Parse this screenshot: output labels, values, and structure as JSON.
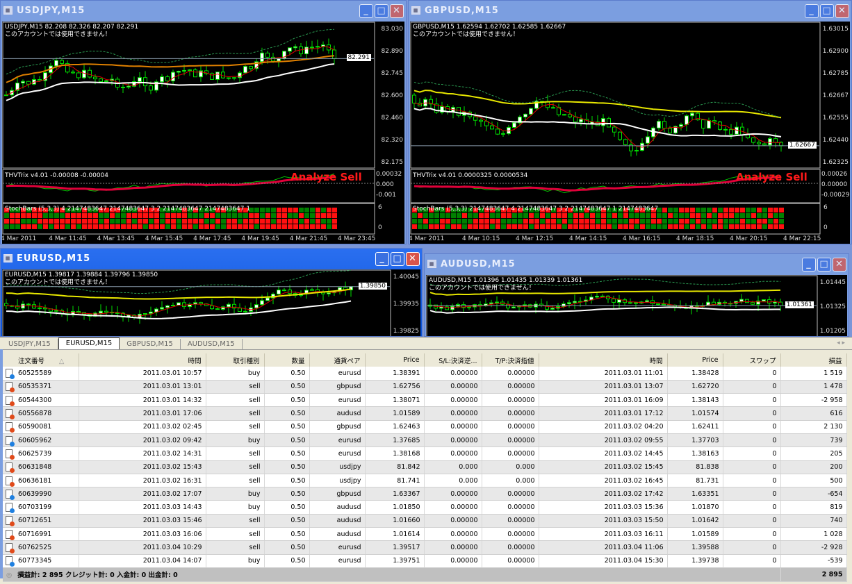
{
  "windows": [
    {
      "id": "usdjpy",
      "title": "USDJPY,M15",
      "ohlc": "USDJPY,M15  82.208 82.326 82.207 82.291",
      "notice": "このアカウントでは使用できません！",
      "price_ticks": [
        "83.030",
        "82.890",
        "82.745",
        "82.600",
        "82.460",
        "82.320",
        "82.175"
      ],
      "current_price": "82.291",
      "indicator1": "THVTrix v4.01 -0.00008 -0.00004",
      "indicator1_ticks": [
        "0.00032",
        "0.000",
        "-0.001"
      ],
      "signal": "Analyze Sell",
      "indicator2": "StochBars (5,3,3) 4 2147483647 2147483647 3 2 2147483647 2147483647 1",
      "indicator2_ticks": [
        "6",
        "0"
      ],
      "time_ticks": [
        "4 Mar 2011",
        "4 Mar 11:45",
        "4 Mar 13:45",
        "4 Mar 15:45",
        "4 Mar 17:45",
        "4 Mar 19:45",
        "4 Mar 21:45",
        "4 Mar 23:45"
      ],
      "active": false
    },
    {
      "id": "gbpusd",
      "title": "GBPUSD,M15",
      "ohlc": "GBPUSD,M15  1.62594 1.62702 1.62585 1.62667",
      "notice": "このアカウントでは使用できません！",
      "price_ticks": [
        "1.63015",
        "1.62900",
        "1.62785",
        "1.62667",
        "1.62555",
        "1.62440",
        "1.62325"
      ],
      "current_price": "1.62667",
      "indicator1": "THVTrix v4.01 0.0000325 0.0000534",
      "indicator1_ticks": [
        "0.00026",
        "0.00000",
        "-0.00029"
      ],
      "signal": "Analyze Sell",
      "indicator2": "StochBars (5,3,3) 2147483647 4 2147483647 3 2 2147483647 1 2147483647",
      "indicator2_ticks": [
        "6",
        "0"
      ],
      "time_ticks": [
        "4 Mar 2011",
        "4 Mar 10:15",
        "4 Mar 12:15",
        "4 Mar 14:15",
        "4 Mar 16:15",
        "4 Mar 18:15",
        "4 Mar 20:15",
        "4 Mar 22:15"
      ],
      "active": false
    },
    {
      "id": "eurusd",
      "title": "EURUSD,M15",
      "ohlc": "EURUSD,M15  1.39817 1.39884 1.39796 1.39850",
      "notice": "このアカウントでは使用できません！",
      "price_ticks": [
        "1.40045",
        "1.39935",
        "1.39825"
      ],
      "current_price": "1.39850",
      "active": true
    },
    {
      "id": "audusd",
      "title": "AUDUSD,M15",
      "ohlc": "AUDUSD,M15  1.01396 1.01435 1.01339 1.01361",
      "notice": "このアカウントでは使用できません！",
      "price_ticks": [
        "1.01445",
        "1.01325",
        "1.01205"
      ],
      "current_price": "1.01361",
      "active": false
    }
  ],
  "terminal": {
    "tabs": [
      "USDJPY,M15",
      "EURUSD,M15",
      "GBPUSD,M15",
      "AUDUSD,M15"
    ],
    "selected_tab": "EURUSD,M15",
    "columns": [
      "注文番号",
      "時間",
      "取引種別",
      "数量",
      "通貨ペア",
      "Price",
      "S/L:決済逆...",
      "T/P:決済指値",
      "時間",
      "Price",
      "スワップ",
      "損益"
    ],
    "sort_indicator": "△",
    "rows": [
      [
        "60525589",
        "2011.03.01 10:57",
        "buy",
        "0.50",
        "eurusd",
        "1.38391",
        "0.00000",
        "0.00000",
        "2011.03.01 11:01",
        "1.38428",
        "0",
        "1 519"
      ],
      [
        "60535371",
        "2011.03.01 13:01",
        "sell",
        "0.50",
        "gbpusd",
        "1.62756",
        "0.00000",
        "0.00000",
        "2011.03.01 13:07",
        "1.62720",
        "0",
        "1 478"
      ],
      [
        "60544300",
        "2011.03.01 14:32",
        "sell",
        "0.50",
        "eurusd",
        "1.38071",
        "0.00000",
        "0.00000",
        "2011.03.01 16:09",
        "1.38143",
        "0",
        "-2 958"
      ],
      [
        "60556878",
        "2011.03.01 17:06",
        "sell",
        "0.50",
        "audusd",
        "1.01589",
        "0.00000",
        "0.00000",
        "2011.03.01 17:12",
        "1.01574",
        "0",
        "616"
      ],
      [
        "60590081",
        "2011.03.02 02:45",
        "sell",
        "0.50",
        "gbpusd",
        "1.62463",
        "0.00000",
        "0.00000",
        "2011.03.02 04:20",
        "1.62411",
        "0",
        "2 130"
      ],
      [
        "60605962",
        "2011.03.02 09:42",
        "buy",
        "0.50",
        "eurusd",
        "1.37685",
        "0.00000",
        "0.00000",
        "2011.03.02 09:55",
        "1.37703",
        "0",
        "739"
      ],
      [
        "60625739",
        "2011.03.02 14:31",
        "sell",
        "0.50",
        "eurusd",
        "1.38168",
        "0.00000",
        "0.00000",
        "2011.03.02 14:45",
        "1.38163",
        "0",
        "205"
      ],
      [
        "60631848",
        "2011.03.02 15:43",
        "sell",
        "0.50",
        "usdjpy",
        "81.842",
        "0.000",
        "0.000",
        "2011.03.02 15:45",
        "81.838",
        "0",
        "200"
      ],
      [
        "60636181",
        "2011.03.02 16:31",
        "sell",
        "0.50",
        "usdjpy",
        "81.741",
        "0.000",
        "0.000",
        "2011.03.02 16:45",
        "81.731",
        "0",
        "500"
      ],
      [
        "60639990",
        "2011.03.02 17:07",
        "buy",
        "0.50",
        "gbpusd",
        "1.63367",
        "0.00000",
        "0.00000",
        "2011.03.02 17:42",
        "1.63351",
        "0",
        "-654"
      ],
      [
        "60703199",
        "2011.03.03 14:43",
        "buy",
        "0.50",
        "audusd",
        "1.01850",
        "0.00000",
        "0.00000",
        "2011.03.03 15:36",
        "1.01870",
        "0",
        "819"
      ],
      [
        "60712651",
        "2011.03.03 15:46",
        "sell",
        "0.50",
        "audusd",
        "1.01660",
        "0.00000",
        "0.00000",
        "2011.03.03 15:50",
        "1.01642",
        "0",
        "740"
      ],
      [
        "60716991",
        "2011.03.03 16:06",
        "sell",
        "0.50",
        "audusd",
        "1.01614",
        "0.00000",
        "0.00000",
        "2011.03.03 16:11",
        "1.01589",
        "0",
        "1 028"
      ],
      [
        "60762525",
        "2011.03.04 10:29",
        "sell",
        "0.50",
        "eurusd",
        "1.39517",
        "0.00000",
        "0.00000",
        "2011.03.04 11:06",
        "1.39588",
        "0",
        "-2 928"
      ],
      [
        "60773345",
        "2011.03.04 14:07",
        "buy",
        "0.50",
        "eurusd",
        "1.39751",
        "0.00000",
        "0.00000",
        "2011.03.04 15:30",
        "1.39738",
        "0",
        "-539"
      ]
    ],
    "summary": "損益計: 2 895  クレジット計: 0  入金計: 0  出金計: 0",
    "summary_total": "2 895",
    "colors": {
      "buy": "#1e7fe0",
      "sell": "#e04a1a"
    }
  }
}
